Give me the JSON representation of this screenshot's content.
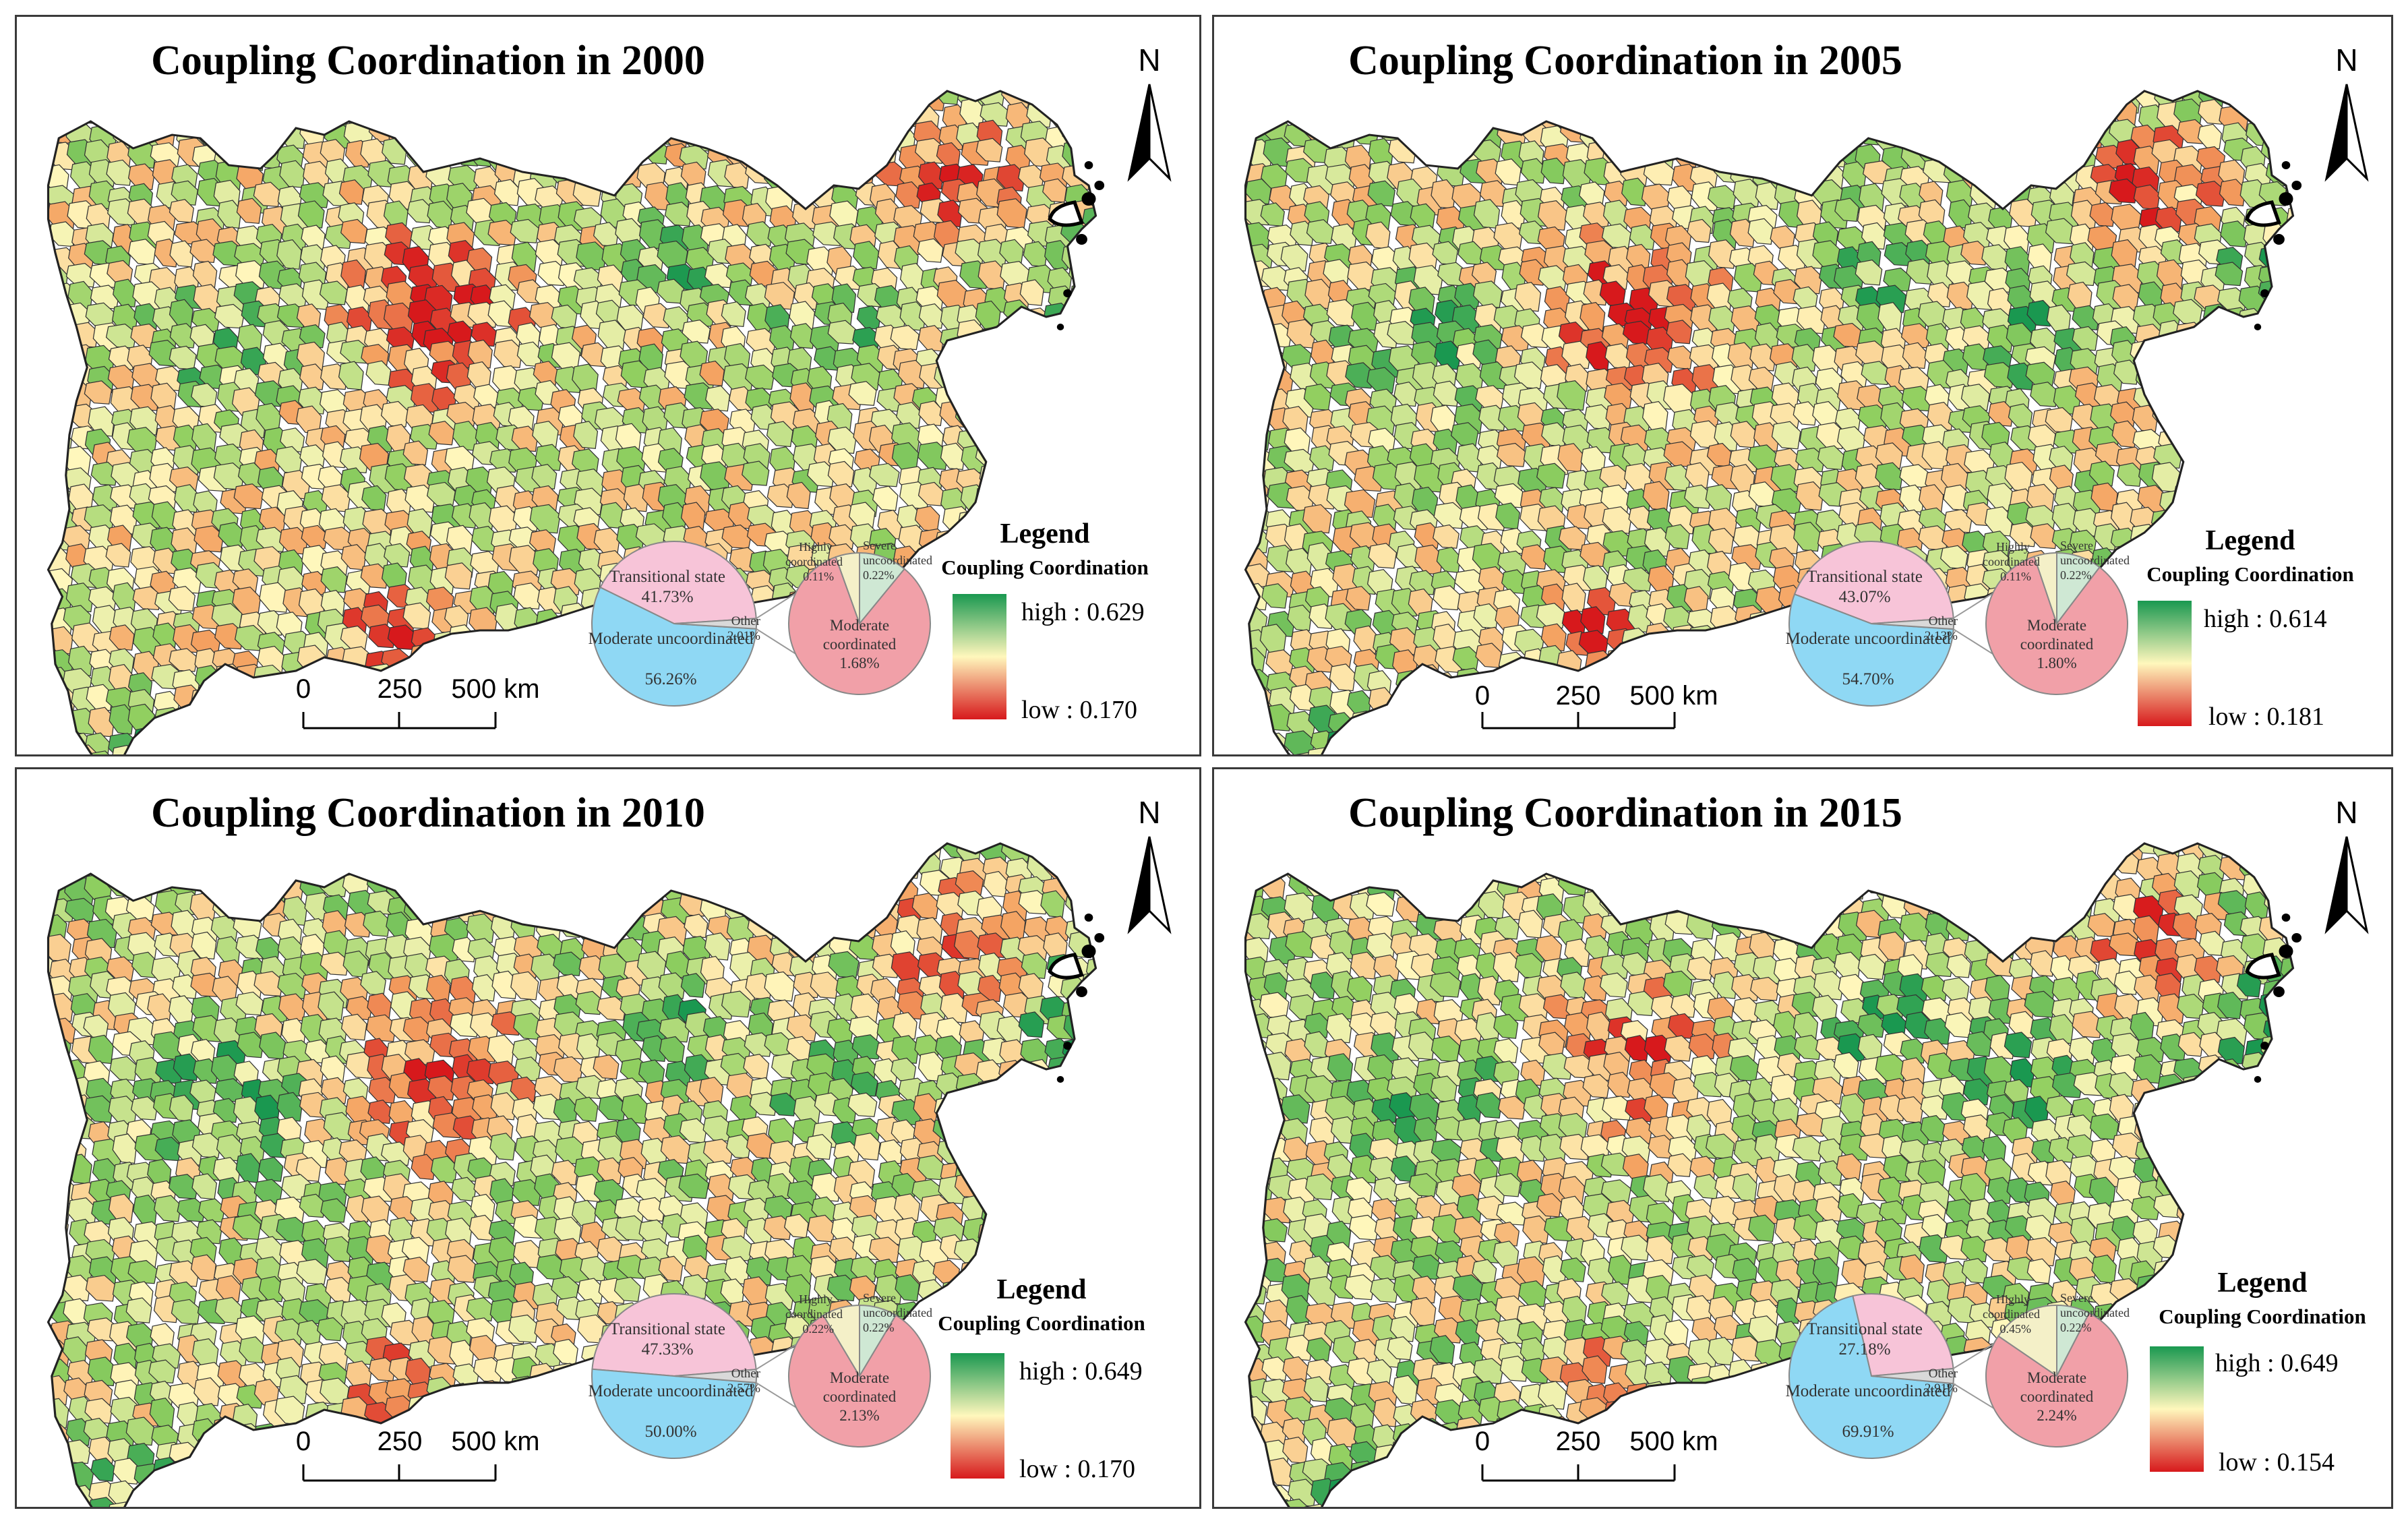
{
  "palette": {
    "low": "#d7191c",
    "mid_low": "#f4a261",
    "mid": "#fff7bc",
    "mid_high": "#91cf60",
    "high": "#1a9850",
    "border": "#333333",
    "pie_moderate_uncoordinated": "#8fd8f4",
    "pie_transitional": "#f7c4d8",
    "pie_other": "#d9d9d9",
    "pie_moderate_coordinated": "#f1a0a8",
    "pie_severe_uncoordinated": "#cfe8d4"
  },
  "icons": {
    "north_arrow": "north-arrow-icon"
  },
  "scale_bar": {
    "ticks": [
      "0",
      "250",
      "500 km"
    ]
  },
  "legend": {
    "title": "Legend",
    "subtitle": "Coupling Coordination"
  },
  "panels": [
    {
      "title": "Coupling Coordination in 2000",
      "north": "N",
      "high_label": "high : 0.629",
      "low_label": "low : 0.170",
      "pie_main": [
        {
          "label": "Transitional state",
          "value": "41.73%",
          "share": 41.73
        },
        {
          "label": "Moderate uncoordinated",
          "value": "56.26%",
          "share": 56.26
        },
        {
          "label": "Other",
          "value": "2.01%",
          "share": 2.01
        }
      ],
      "pie_other": [
        {
          "label": "Highly coordinated",
          "value": "0.11%",
          "share": 0.11
        },
        {
          "label": "Severe uncoordinated",
          "value": "0.22%",
          "share": 0.22
        },
        {
          "label": "Moderate coordinated",
          "value": "1.68%",
          "share": 1.68
        }
      ]
    },
    {
      "title": "Coupling Coordination in 2005",
      "north": "N",
      "high_label": "high : 0.614",
      "low_label": "low : 0.181",
      "pie_main": [
        {
          "label": "Transitional state",
          "value": "43.07%",
          "share": 43.07
        },
        {
          "label": "Moderate uncoordinated",
          "value": "54.70%",
          "share": 54.7
        },
        {
          "label": "Other",
          "value": "2.13%",
          "share": 2.13
        }
      ],
      "pie_other": [
        {
          "label": "Highly coordinated",
          "value": "0.11%",
          "share": 0.11
        },
        {
          "label": "Severe uncoordinated",
          "value": "0.22%",
          "share": 0.22
        },
        {
          "label": "Moderate coordinated",
          "value": "1.80%",
          "share": 1.8
        }
      ]
    },
    {
      "title": "Coupling Coordination in 2010",
      "north": "N",
      "high_label": "high : 0.649",
      "low_label": "low : 0.170",
      "pie_main": [
        {
          "label": "Transitional state",
          "value": "47.33%",
          "share": 47.33
        },
        {
          "label": "Moderate uncoordinated",
          "value": "50.00%",
          "share": 50.0
        },
        {
          "label": "Other",
          "value": "2.57%",
          "share": 2.57
        }
      ],
      "pie_other": [
        {
          "label": "Highly coordinated",
          "value": "0.22%",
          "share": 0.22
        },
        {
          "label": "Severe uncoordinated",
          "value": "0.22%",
          "share": 0.22
        },
        {
          "label": "Moderate coordinated",
          "value": "2.13%",
          "share": 2.13
        }
      ]
    },
    {
      "title": "Coupling Coordination in 2015",
      "north": "N",
      "high_label": "high : 0.649",
      "low_label": "low : 0.154",
      "pie_main": [
        {
          "label": "Transitional state",
          "value": "27.18%",
          "share": 27.18
        },
        {
          "label": "Moderate uncoordinated",
          "value": "69.91%",
          "share": 69.91
        },
        {
          "label": "Other",
          "value": "2.91%",
          "share": 2.91
        }
      ],
      "pie_other": [
        {
          "label": "Highly coordinated",
          "value": "0.45%",
          "share": 0.45
        },
        {
          "label": "Severe uncoordinated",
          "value": "0.22%",
          "share": 0.22
        },
        {
          "label": "Moderate coordinated",
          "value": "2.24%",
          "share": 2.24
        }
      ]
    }
  ]
}
